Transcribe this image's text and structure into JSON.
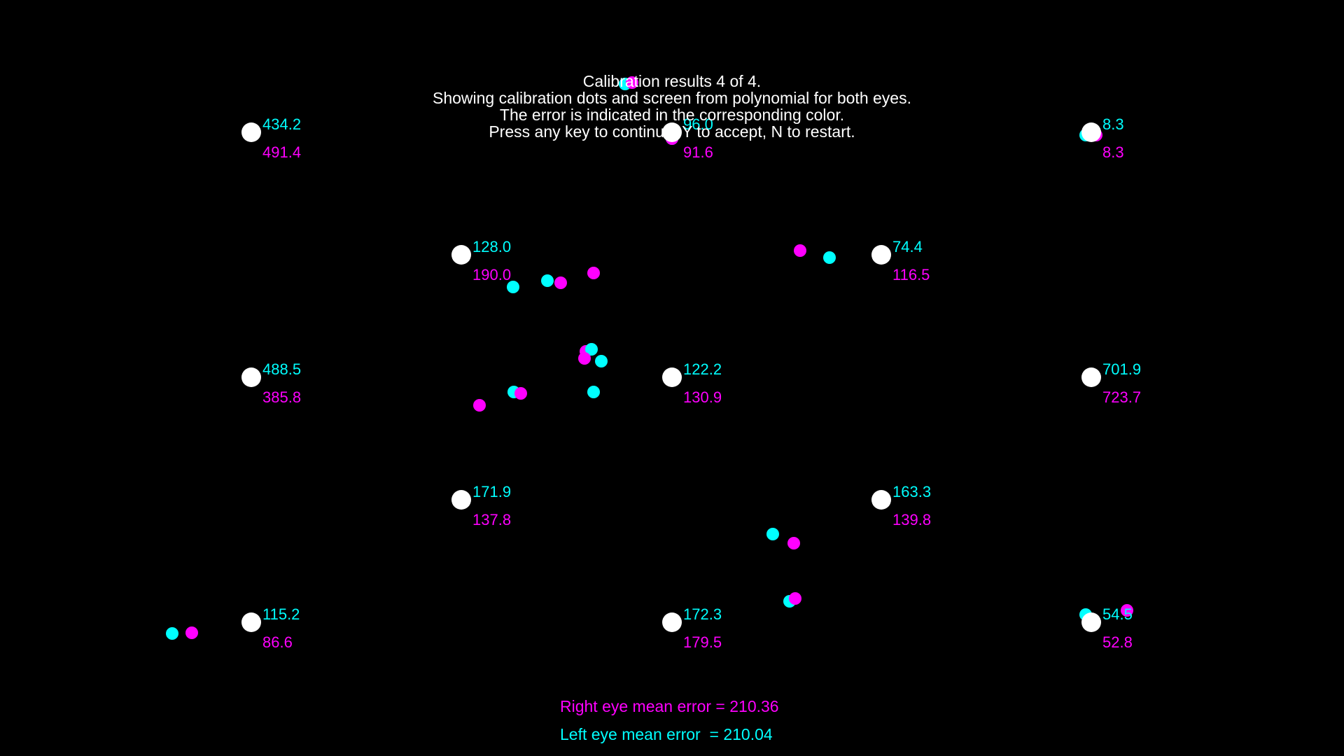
{
  "header": {
    "line1": "Calibration results 4 of 4.",
    "line2": "Showing calibration dots and screen from polynomial for both eyes.",
    "line3": "The error is indicated in the corresponding color.",
    "line4": "Press any key to continue, Y to accept, N to restart."
  },
  "colors": {
    "background": "#000000",
    "target": "#ffffff",
    "left_eye": "#00ffff",
    "right_eye": "#ff00ff",
    "text": "#ffffff"
  },
  "summary": {
    "right_eye_label": "Right eye mean error = 210.36",
    "left_eye_label": "Left eye mean error  = 210.04"
  },
  "calibration_points": [
    {
      "name": "point-top-left",
      "left_error": "434.2",
      "right_error": "491.4"
    },
    {
      "name": "point-top-center",
      "left_error": "96.0",
      "right_error": "91.6"
    },
    {
      "name": "point-top-right",
      "left_error": "8.3",
      "right_error": "8.3"
    },
    {
      "name": "point-upper-inner-left",
      "left_error": "128.0",
      "right_error": "190.0"
    },
    {
      "name": "point-upper-inner-right",
      "left_error": "74.4",
      "right_error": "116.5"
    },
    {
      "name": "point-middle-left",
      "left_error": "488.5",
      "right_error": "385.8"
    },
    {
      "name": "point-middle-center",
      "left_error": "122.2",
      "right_error": "130.9"
    },
    {
      "name": "point-middle-right",
      "left_error": "701.9",
      "right_error": "723.7"
    },
    {
      "name": "point-lower-inner-left",
      "left_error": "171.9",
      "right_error": "137.8"
    },
    {
      "name": "point-lower-inner-right",
      "left_error": "163.3",
      "right_error": "139.8"
    },
    {
      "name": "point-bottom-left",
      "left_error": "115.2",
      "right_error": "86.6"
    },
    {
      "name": "point-bottom-center",
      "left_error": "172.3",
      "right_error": "179.5"
    },
    {
      "name": "point-bottom-right",
      "left_error": "54.5",
      "right_error": "52.8"
    }
  ]
}
